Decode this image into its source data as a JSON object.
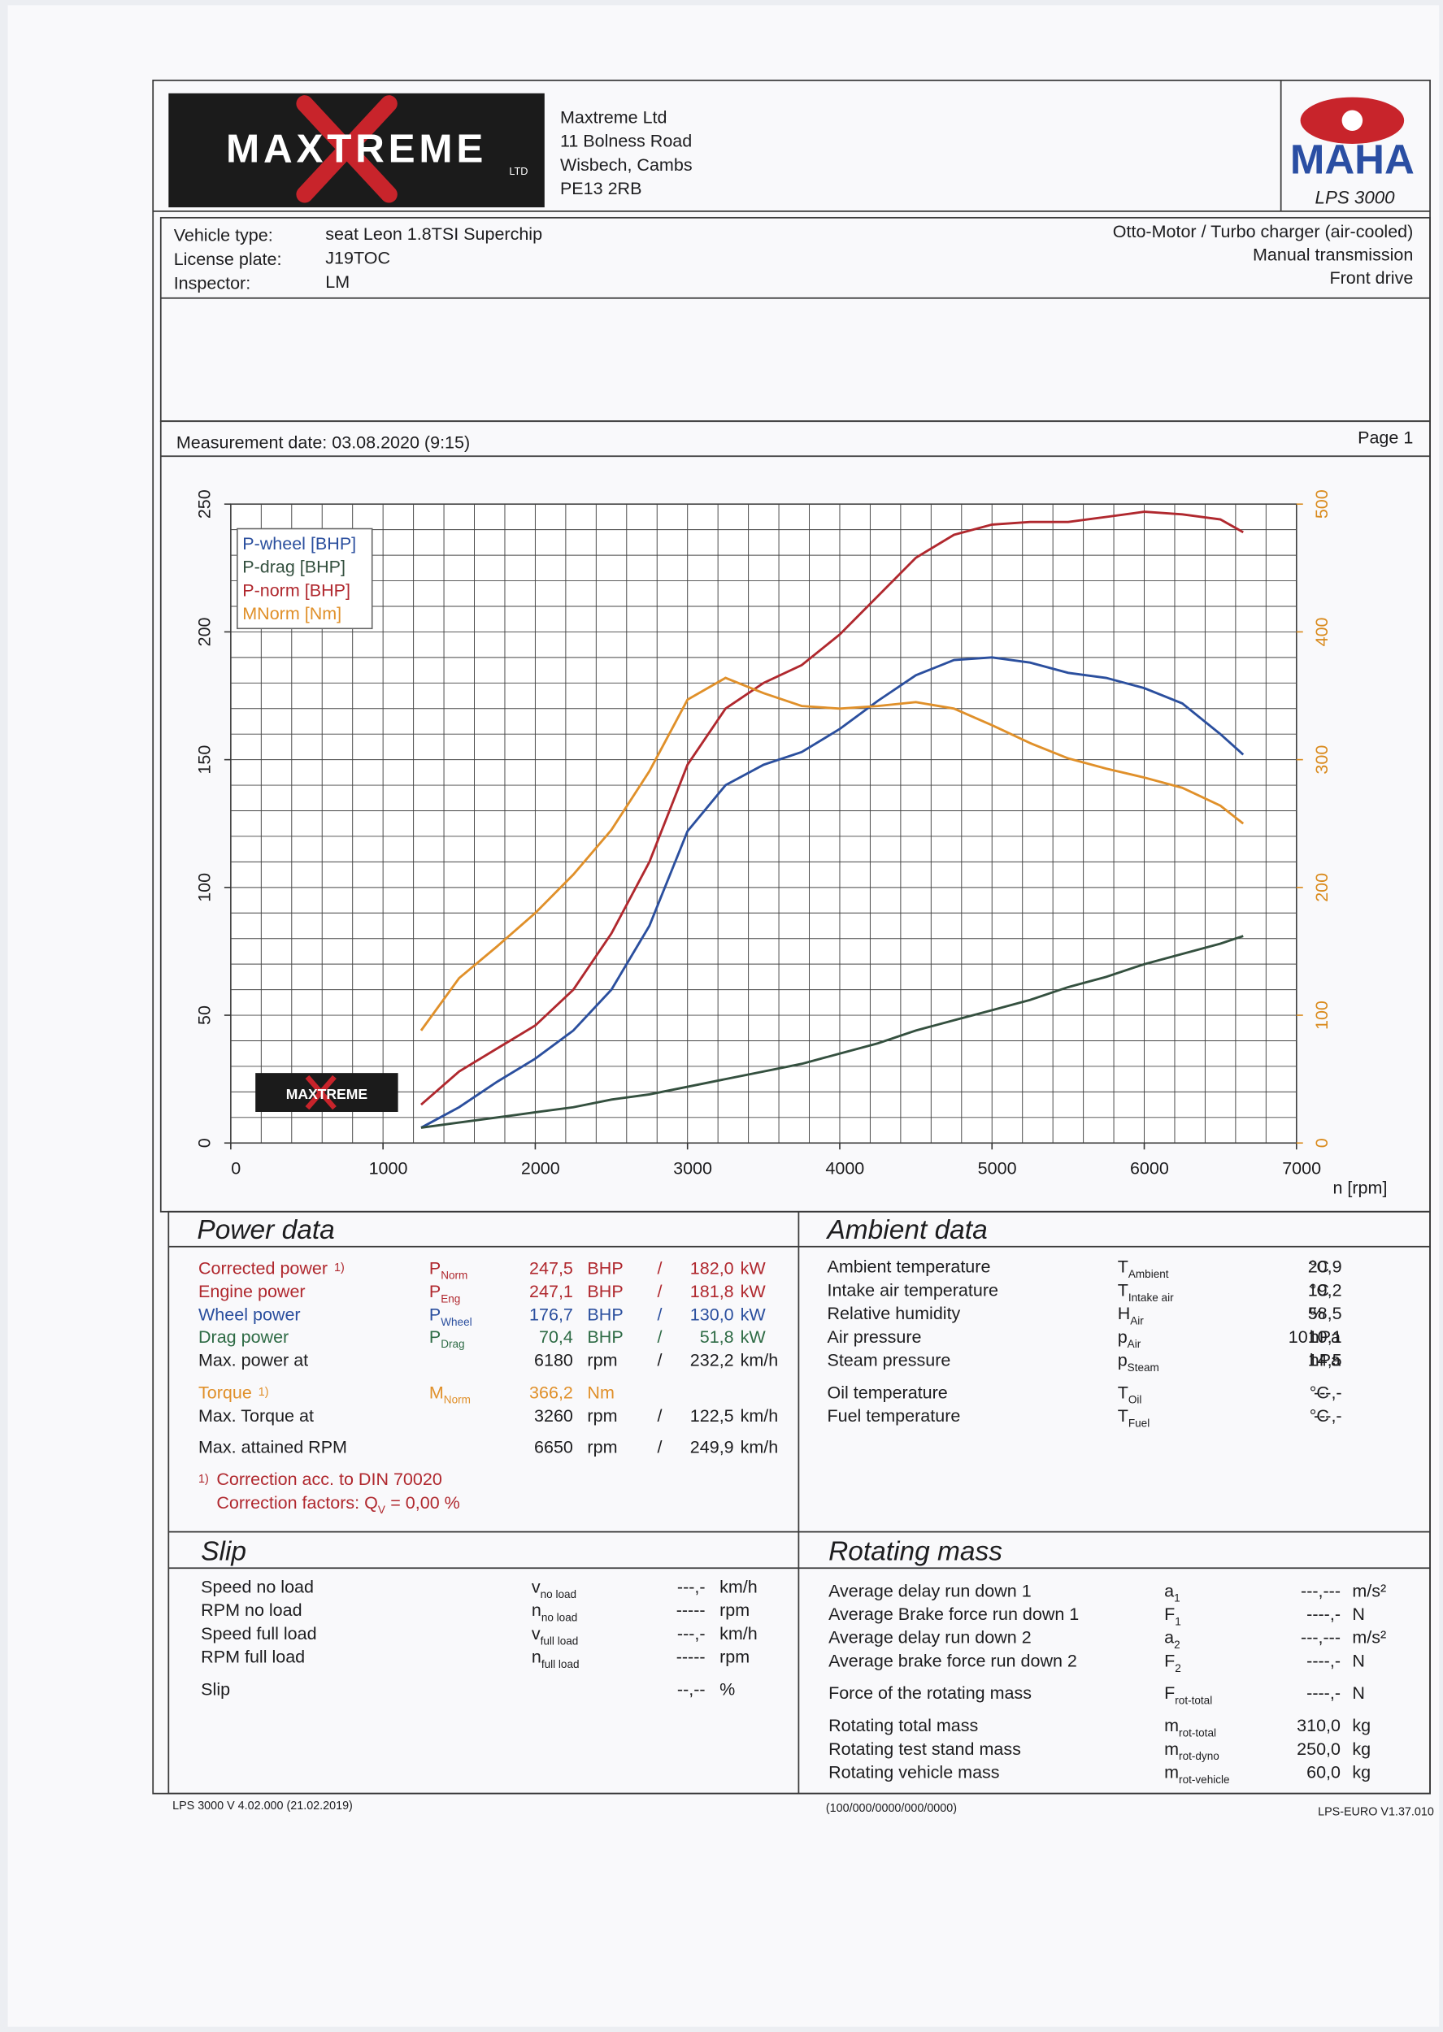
{
  "header": {
    "logo": "MAXTREME",
    "logo_sub": "LTD",
    "address": [
      "Maxtreme Ltd",
      "11 Bolness Road",
      "Wisbech, Cambs",
      "PE13 2RB"
    ],
    "brand": "MAHA",
    "model": "LPS 3000"
  },
  "vehicle": {
    "rows": [
      {
        "label": "Vehicle type:",
        "value": "seat Leon 1.8TSI Superchip"
      },
      {
        "label": "License plate:",
        "value": "J19TOC"
      },
      {
        "label": "Inspector:",
        "value": "LM"
      }
    ],
    "right": [
      "Otto-Motor / Turbo charger (air-cooled)",
      "Manual transmission",
      "Front drive"
    ]
  },
  "measurement": {
    "date": "Measurement date: 03.08.2020 (9:15)",
    "page": "Page 1"
  },
  "chart_data": {
    "type": "line",
    "x_label": "n [rpm]",
    "watermark": "MAXTREME",
    "x": [
      1250,
      1500,
      1750,
      2000,
      2250,
      2500,
      2750,
      3000,
      3250,
      3500,
      3750,
      4000,
      4250,
      4500,
      4750,
      5000,
      5250,
      5500,
      5750,
      6000,
      6250,
      6500,
      6650
    ],
    "series": [
      {
        "name": "P-wheel [BHP]",
        "color": "#2b4f9e",
        "values": [
          6,
          14,
          24,
          33,
          44,
          60,
          85,
          122,
          140,
          148,
          153,
          162,
          173,
          183,
          189,
          190,
          188,
          184,
          182,
          178,
          172,
          160,
          152
        ]
      },
      {
        "name": "P-drag [BHP]",
        "color": "#34503f",
        "values": [
          6,
          8,
          10,
          12,
          14,
          17,
          19,
          22,
          25,
          28,
          31,
          35,
          39,
          44,
          48,
          52,
          56,
          61,
          65,
          70,
          74,
          78,
          81
        ]
      },
      {
        "name": "P-norm [BHP]",
        "color": "#b0282e",
        "values": [
          15,
          28,
          37,
          46,
          60,
          82,
          110,
          148,
          170,
          180,
          187,
          199,
          214,
          229,
          238,
          242,
          243,
          243,
          245,
          247,
          246,
          244,
          239
        ]
      },
      {
        "name": "MNorm [Nm]",
        "color": "#e0902a",
        "axis": "y2",
        "values": [
          88,
          129,
          154,
          180,
          210,
          245,
          291,
          347,
          364,
          352,
          342,
          340,
          342,
          345,
          340,
          327,
          313,
          301,
          293,
          286,
          278,
          264,
          250
        ]
      }
    ],
    "xlim": [
      0,
      7000
    ],
    "xticks": [
      0,
      1000,
      2000,
      3000,
      4000,
      5000,
      6000,
      7000
    ],
    "ylim": [
      0,
      250
    ],
    "yticks": [
      0,
      50,
      100,
      150,
      200,
      250
    ],
    "y2lim": [
      0,
      500
    ],
    "y2ticks": [
      0,
      100,
      200,
      300,
      400,
      500
    ],
    "y2_color": "#d98a1c",
    "grid": true,
    "minor_grid": {
      "x": 200,
      "y": 10
    },
    "legend": "upper left"
  },
  "power": {
    "title": "Power data",
    "sep": "/",
    "rows": [
      {
        "label": "Corrected power",
        "note": "1)",
        "color": "#b0282e",
        "symbol": {
          "main": "P",
          "sub": "Norm"
        },
        "value": "247,5",
        "unit": "BHP",
        "value2": "182,0",
        "unit2": "kW"
      },
      {
        "label": "Engine power",
        "color": "#b0282e",
        "symbol": {
          "main": "P",
          "sub": "Eng"
        },
        "value": "247,1",
        "unit": "BHP",
        "value2": "181,8",
        "unit2": "kW"
      },
      {
        "label": "Wheel power",
        "color": "#2b4f9e",
        "symbol": {
          "main": "P",
          "sub": "Wheel"
        },
        "value": "176,7",
        "unit": "BHP",
        "value2": "130,0",
        "unit2": "kW"
      },
      {
        "label": "Drag power",
        "color": "#2e6b45",
        "symbol": {
          "main": "P",
          "sub": "Drag"
        },
        "value": "70,4",
        "unit": "BHP",
        "value2": "51,8",
        "unit2": "kW"
      },
      {
        "label": "Max. power at",
        "value": "6180",
        "unit": "rpm",
        "value2": "232,2",
        "unit2": "km/h"
      },
      {
        "label": "Torque",
        "note": "1)",
        "color": "#e0902a",
        "symbol": {
          "main": "M",
          "sub": "Norm"
        },
        "value": "366,2",
        "unit": "Nm"
      },
      {
        "label": "Max. Torque at",
        "value": "3260",
        "unit": "rpm",
        "value2": "122,5",
        "unit2": "km/h"
      },
      {
        "label": "Max. attained RPM",
        "value": "6650",
        "unit": "rpm",
        "value2": "249,9",
        "unit2": "km/h"
      }
    ],
    "footnote": {
      "mark": "1)",
      "text": "Correction acc. to DIN 70020"
    },
    "factors": {
      "text": "Correction factors: Q",
      "sub": "V",
      "value": "= 0,00 %"
    }
  },
  "ambient": {
    "title": "Ambient data",
    "rows": [
      {
        "label": "Ambient temperature",
        "symbol": {
          "main": "T",
          "sub": "Ambient"
        },
        "value": "20,9",
        "unit": "°C"
      },
      {
        "label": "Intake air temperature",
        "symbol": {
          "main": "T",
          "sub": "Intake air"
        },
        "value": "19,2",
        "unit": "°C"
      },
      {
        "label": "Relative humidity",
        "symbol": {
          "main": "H",
          "sub": "Air"
        },
        "value": "58,5",
        "unit": "%"
      },
      {
        "label": "Air pressure",
        "symbol": {
          "main": "p",
          "sub": "Air"
        },
        "value": "1010,1",
        "unit": "hPa"
      },
      {
        "label": "Steam pressure",
        "symbol": {
          "main": "p",
          "sub": "Steam"
        },
        "value": "14,5",
        "unit": "hPa"
      },
      {
        "label": "Oil temperature",
        "symbol": {
          "main": "T",
          "sub": "Oil"
        },
        "value": "---,-",
        "unit": "°C"
      },
      {
        "label": "Fuel temperature",
        "symbol": {
          "main": "T",
          "sub": "Fuel"
        },
        "value": "---,-",
        "unit": "°C"
      }
    ]
  },
  "slip": {
    "title": "Slip",
    "rows": [
      {
        "label": "Speed no load",
        "symbol": {
          "main": "v",
          "sub": "no load"
        },
        "value": "---,-",
        "unit": "km/h"
      },
      {
        "label": "RPM no load",
        "symbol": {
          "main": "n",
          "sub": "no load"
        },
        "value": "-----",
        "unit": "rpm"
      },
      {
        "label": "Speed full load",
        "symbol": {
          "main": "v",
          "sub": "full load"
        },
        "value": "---,-",
        "unit": "km/h"
      },
      {
        "label": "RPM full load",
        "symbol": {
          "main": "n",
          "sub": "full load"
        },
        "value": "-----",
        "unit": "rpm"
      },
      {
        "label": "Slip",
        "value": "--,--",
        "unit": "%"
      }
    ]
  },
  "rotating": {
    "title": "Rotating mass",
    "rows": [
      {
        "label": "Average delay run down 1",
        "symbol": {
          "main": "a",
          "sub": "1"
        },
        "value": "---,---",
        "unit": "m/s²"
      },
      {
        "label": "Average Brake force run down 1",
        "symbol": {
          "main": "F",
          "sub": "1"
        },
        "value": "----,-",
        "unit": "N"
      },
      {
        "label": "Average delay run down 2",
        "symbol": {
          "main": "a",
          "sub": "2"
        },
        "value": "---,---",
        "unit": "m/s²"
      },
      {
        "label": "Average brake force run down 2",
        "symbol": {
          "main": "F",
          "sub": "2"
        },
        "value": "----,-",
        "unit": "N"
      },
      {
        "label": "Force of the rotating mass",
        "symbol": {
          "main": "F",
          "sub": "rot-total"
        },
        "value": "----,-",
        "unit": "N"
      },
      {
        "label": "Rotating total mass",
        "symbol": {
          "main": "m",
          "sub": "rot-total"
        },
        "value": "310,0",
        "unit": "kg"
      },
      {
        "label": "Rotating test stand mass",
        "symbol": {
          "main": "m",
          "sub": "rot-dyno"
        },
        "value": "250,0",
        "unit": "kg"
      },
      {
        "label": "Rotating vehicle mass",
        "symbol": {
          "main": "m",
          "sub": "rot-vehicle"
        },
        "value": "60,0",
        "unit": "kg"
      }
    ]
  },
  "footer": [
    "LPS 3000 V 4.02.000 (21.02.2019)",
    "(100/000/0000/000/0000)",
    "LPS-EURO V1.37.010"
  ]
}
